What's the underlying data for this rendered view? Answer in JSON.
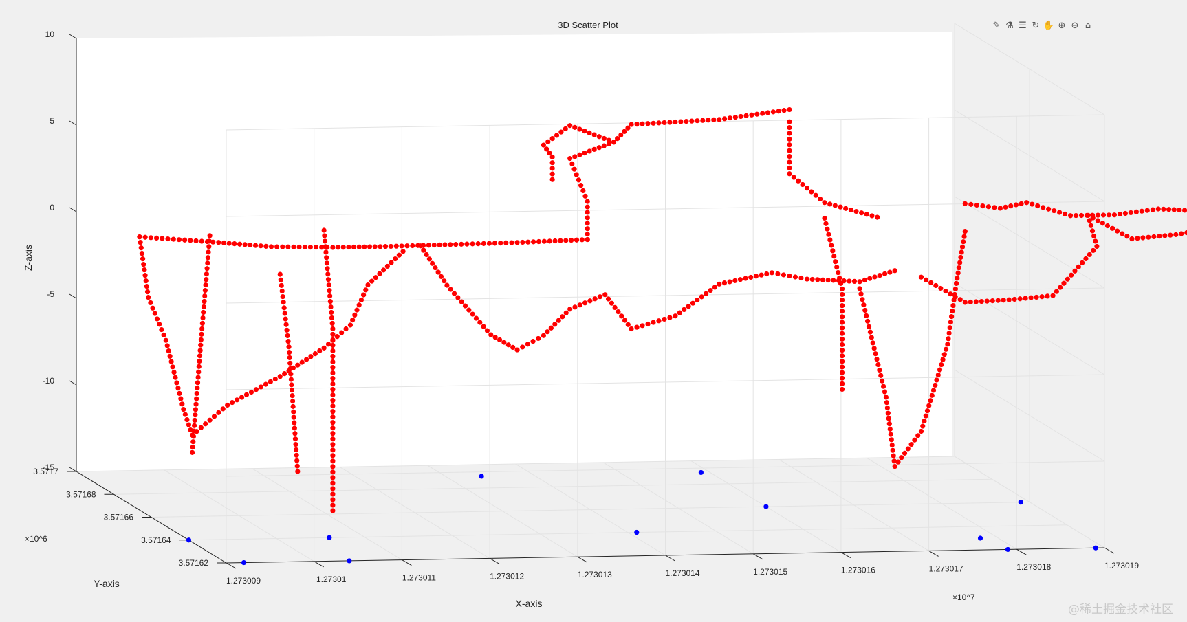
{
  "chart_data": {
    "type": "scatter",
    "title": "3D Scatter Plot",
    "xlabel": "X-axis",
    "ylabel": "Y-axis",
    "zlabel": "Z-axis",
    "x_multiplier": "×10^7",
    "y_multiplier": "×10^6",
    "x_ticks": [
      "1.273009",
      "1.27301",
      "1.273011",
      "1.273012",
      "1.273013",
      "1.273014",
      "1.273015",
      "1.273016",
      "1.273017",
      "1.273018",
      "1.273019"
    ],
    "y_ticks": [
      "3.57162",
      "3.57164",
      "3.57166",
      "3.57168",
      "3.5717"
    ],
    "z_ticks": [
      "-15",
      "-10",
      "-5",
      "0",
      "5",
      "10"
    ],
    "xlim": [
      1.273009,
      1.273019
    ],
    "ylim": [
      3.57162,
      3.5717
    ],
    "zlim": [
      -15,
      10
    ],
    "grid": true,
    "colors": {
      "primary": "#ff0000",
      "secondary": "#0000ff"
    },
    "series": [
      {
        "color": "#ff0000",
        "paths": [
          [
            [
              1.2730094,
              3.571685,
              -0.5
            ],
            [
              1.2730103,
              3.571685,
              -0.9
            ],
            [
              1.2730109,
              3.571685,
              -1.2
            ],
            [
              1.2730116,
              3.571685,
              -1.3
            ],
            [
              1.2730122,
              3.571685,
              -1.3
            ],
            [
              1.273013,
              3.571685,
              -1.25
            ],
            [
              1.2730137,
              3.571685,
              -1.2
            ],
            [
              1.2730145,
              3.571685,
              -1.1
            ]
          ],
          [
            [
              1.2730145,
              3.571685,
              -1.1
            ],
            [
              1.2730145,
              3.571685,
              1.1
            ],
            [
              1.2730143,
              3.571685,
              3.6
            ],
            [
              1.2730148,
              3.571685,
              4.5
            ],
            [
              1.273015,
              3.571685,
              5.5
            ],
            [
              1.273016,
              3.571685,
              5.7
            ],
            [
              1.2730168,
              3.571685,
              6.2
            ]
          ],
          [
            [
              1.2730148,
              3.571685,
              4.5
            ],
            [
              1.2730143,
              3.571685,
              5.5
            ],
            [
              1.273014,
              3.571685,
              4.4
            ],
            [
              1.2730141,
              3.571685,
              3.7
            ],
            [
              1.2730141,
              3.571685,
              2.4
            ]
          ],
          [
            [
              1.2730168,
              3.571685,
              5.5
            ],
            [
              1.2730168,
              3.571685,
              2.5
            ],
            [
              1.2730172,
              3.571685,
              0.8
            ],
            [
              1.2730178,
              3.571685,
              -0.1
            ]
          ],
          [
            [
              1.2730172,
              3.571685,
              -0.1
            ],
            [
              1.2730174,
              3.571685,
              -4.2
            ],
            [
              1.2730174,
              3.571685,
              -10.0
            ]
          ],
          [
            [
              1.2730176,
              3.571685,
              -4.2
            ],
            [
              1.2730179,
              3.571685,
              -10.5
            ],
            [
              1.273018,
              3.571685,
              -14.5
            ],
            [
              1.2730183,
              3.571685,
              -12.5
            ],
            [
              1.2730186,
              3.571685,
              -7.5
            ],
            [
              1.2730187,
              3.571685,
              -4.0
            ],
            [
              1.2730188,
              3.571685,
              -1.0
            ]
          ],
          [
            [
              1.2730188,
              3.571685,
              0.6
            ],
            [
              1.2730192,
              3.571685,
              0.3
            ],
            [
              1.2730195,
              3.571685,
              0.6
            ],
            [
              1.27302,
              3.571685,
              -0.2
            ],
            [
              1.2730205,
              3.571685,
              -0.2
            ],
            [
              1.273021,
              3.571685,
              0.1
            ],
            [
              1.2730216,
              3.571685,
              -0.1
            ],
            [
              1.273022,
              3.571685,
              -0.2
            ]
          ],
          [
            [
              1.2730126,
              3.571685,
              -1.3
            ],
            [
              1.2730129,
              3.571685,
              -3.6
            ],
            [
              1.2730134,
              3.571685,
              -6.5
            ],
            [
              1.2730137,
              3.571685,
              -7.4
            ],
            [
              1.273014,
              3.571685,
              -6.6
            ],
            [
              1.2730143,
              3.571685,
              -5.1
            ],
            [
              1.2730147,
              3.571685,
              -4.3
            ],
            [
              1.273015,
              3.571685,
              -6.3
            ],
            [
              1.2730155,
              3.571685,
              -5.6
            ],
            [
              1.273016,
              3.571685,
              -3.8
            ],
            [
              1.2730166,
              3.571685,
              -3.2
            ],
            [
              1.273017,
              3.571685,
              -3.6
            ],
            [
              1.2730176,
              3.571685,
              -3.8
            ],
            [
              1.273018,
              3.571685,
              -3.2
            ]
          ],
          [
            [
              1.2730183,
              3.571685,
              -3.6
            ],
            [
              1.2730188,
              3.571685,
              -5.1
            ],
            [
              1.2730193,
              3.571685,
              -5.0
            ],
            [
              1.2730198,
              3.571685,
              -4.8
            ],
            [
              1.2730203,
              3.571685,
              -2.0
            ],
            [
              1.2730202,
              3.571685,
              -0.2
            ],
            [
              1.2730207,
              3.571685,
              -1.6
            ],
            [
              1.2730212,
              3.571685,
              -1.4
            ],
            [
              1.2730217,
              3.571685,
              -1.0
            ],
            [
              1.273022,
              3.571685,
              -0.9
            ]
          ],
          [
            [
              1.2730094,
              3.571685,
              -0.5
            ],
            [
              1.2730095,
              3.571685,
              -4.0
            ],
            [
              1.2730097,
              3.571685,
              -6.5
            ],
            [
              1.2730099,
              3.571685,
              -10.5
            ],
            [
              1.27301,
              3.571685,
              -12.0
            ],
            [
              1.2730104,
              3.571685,
              -10.3
            ],
            [
              1.273011,
              3.571685,
              -8.7
            ],
            [
              1.2730115,
              3.571685,
              -7.1
            ],
            [
              1.2730118,
              3.571685,
              -5.8
            ],
            [
              1.273012,
              3.571685,
              -3.5
            ],
            [
              1.2730124,
              3.571685,
              -1.6
            ]
          ],
          [
            [
              1.2730102,
              3.571685,
              -0.5
            ],
            [
              1.2730101,
              3.571685,
              -6.5
            ],
            [
              1.27301,
              3.571685,
              -13.0
            ]
          ],
          [
            [
              1.273011,
              3.571685,
              -2.8
            ],
            [
              1.2730111,
              3.571685,
              -7.0
            ],
            [
              1.2730112,
              3.571685,
              -14.2
            ]
          ],
          [
            [
              1.2730115,
              3.571685,
              -0.3
            ],
            [
              1.2730116,
              3.571685,
              -6.0
            ],
            [
              1.2730116,
              3.571685,
              -16.5
            ]
          ]
        ]
      },
      {
        "color": "#0000ff",
        "points": [
          [
            1.273009,
            3.57164,
            -15
          ],
          [
            1.2730092,
            3.57162,
            -15
          ],
          [
            1.2730106,
            3.57164,
            -15
          ],
          [
            1.2730104,
            3.57162,
            -15
          ],
          [
            1.2730134,
            3.57169,
            -15
          ],
          [
            1.2730141,
            3.57164,
            -15
          ],
          [
            1.2730159,
            3.57169,
            -15
          ],
          [
            1.273016,
            3.57166,
            -15
          ],
          [
            1.2730178,
            3.57163,
            -15
          ],
          [
            1.2730179,
            3.57162,
            -15
          ],
          [
            1.2730189,
            3.57166,
            -15
          ],
          [
            1.2730189,
            3.57162,
            -15
          ]
        ]
      }
    ]
  },
  "toolbar": {
    "icons": [
      "brush-icon",
      "data-tip-icon",
      "legend-icon",
      "rotate-icon",
      "pan-icon",
      "zoom-in-icon",
      "zoom-out-icon",
      "home-icon"
    ],
    "glyphs": [
      "✎",
      "⚗",
      "☰",
      "↻",
      "✋",
      "⊕",
      "⊖",
      "⌂"
    ]
  },
  "watermark": "@稀土掘金技术社区"
}
